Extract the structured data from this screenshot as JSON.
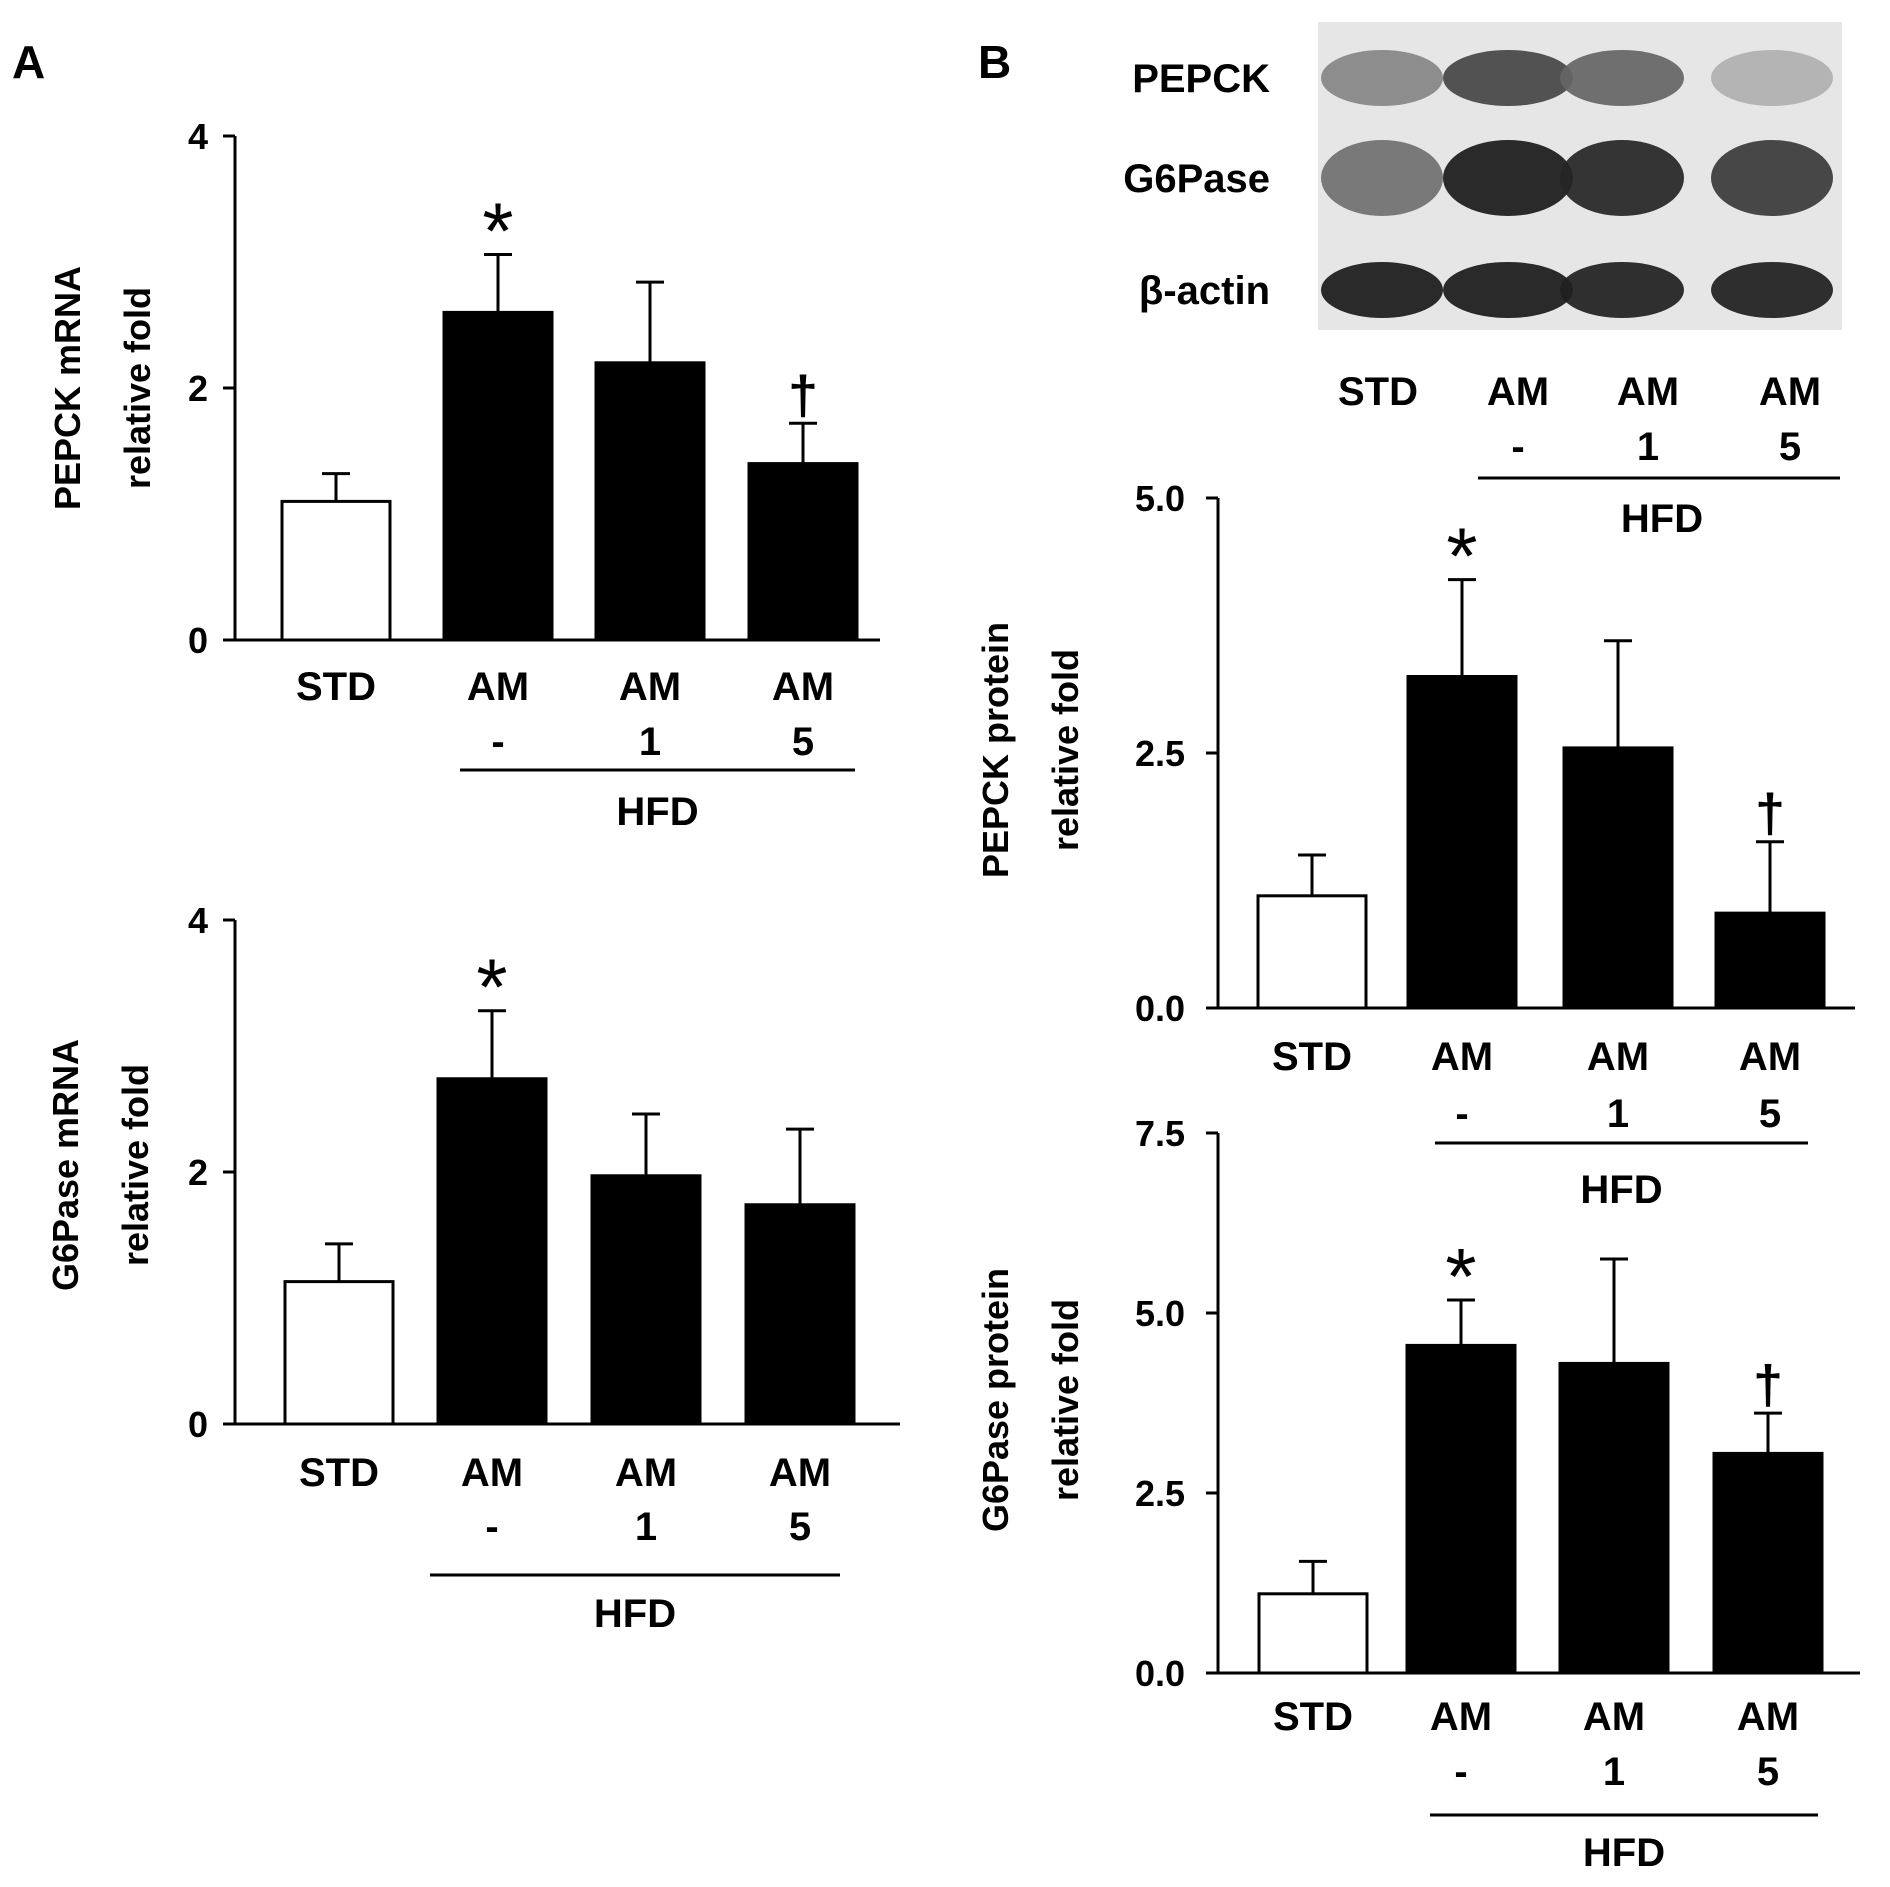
{
  "panel_labels": [
    "A",
    "B"
  ],
  "blot": {
    "rows": [
      "PEPCK",
      "G6Pase",
      "β-actin"
    ],
    "lanes": [
      "STD",
      "AM",
      "AM",
      "AM"
    ],
    "doses": [
      "",
      "-",
      "1",
      "5"
    ],
    "group_label": "HFD",
    "intensity": [
      [
        0.45,
        0.75,
        0.6,
        0.25
      ],
      [
        0.55,
        0.95,
        0.9,
        0.8
      ],
      [
        0.95,
        0.95,
        0.92,
        0.93
      ]
    ]
  },
  "chart_data": [
    {
      "type": "bar",
      "panel": "A",
      "ylabel": [
        "PEPCK mRNA",
        "relative fold"
      ],
      "categories": [
        "STD",
        "AM",
        "AM",
        "AM"
      ],
      "doses": [
        "",
        "-",
        "1",
        "5"
      ],
      "group_label": "HFD",
      "values": [
        1.1,
        2.6,
        2.2,
        1.4
      ],
      "errors": [
        0.22,
        0.46,
        0.64,
        0.32
      ],
      "fills": [
        "#ffffff",
        "#000000",
        "#000000",
        "#000000"
      ],
      "marks": [
        "",
        "*",
        "",
        "†"
      ],
      "ylim": [
        0,
        4
      ],
      "yticks": [
        "0",
        "2",
        "4"
      ]
    },
    {
      "type": "bar",
      "panel": "A",
      "ylabel": [
        "G6Pase mRNA",
        "relative fold"
      ],
      "categories": [
        "STD",
        "AM",
        "AM",
        "AM"
      ],
      "doses": [
        "",
        "-",
        "1",
        "5"
      ],
      "group_label": "HFD",
      "values": [
        1.13,
        2.74,
        1.97,
        1.74
      ],
      "errors": [
        0.3,
        0.54,
        0.49,
        0.6
      ],
      "fills": [
        "#ffffff",
        "#000000",
        "#000000",
        "#000000"
      ],
      "marks": [
        "",
        "*",
        "",
        ""
      ],
      "ylim": [
        0,
        4
      ],
      "yticks": [
        "0",
        "2",
        "4"
      ]
    },
    {
      "type": "bar",
      "panel": "B",
      "ylabel": [
        "PEPCK protein",
        "relative fold"
      ],
      "categories": [
        "STD",
        "AM",
        "AM",
        "AM"
      ],
      "doses": [
        "",
        "-",
        "1",
        "5"
      ],
      "group_label": "HFD",
      "values": [
        1.1,
        3.25,
        2.55,
        0.93
      ],
      "errors": [
        0.4,
        0.95,
        1.05,
        0.7
      ],
      "fills": [
        "#ffffff",
        "#000000",
        "#000000",
        "#000000"
      ],
      "marks": [
        "",
        "*",
        "",
        "†"
      ],
      "ylim": [
        0,
        5
      ],
      "yticks": [
        "0.0",
        "2.5",
        "5.0"
      ]
    },
    {
      "type": "bar",
      "panel": "B",
      "ylabel": [
        "G6Pase protein",
        "relative fold"
      ],
      "categories": [
        "STD",
        "AM",
        "AM",
        "AM"
      ],
      "doses": [
        "",
        "-",
        "1",
        "5"
      ],
      "group_label": "HFD",
      "values": [
        1.1,
        4.55,
        4.3,
        3.05
      ],
      "errors": [
        0.45,
        0.63,
        1.45,
        0.56
      ],
      "fills": [
        "#ffffff",
        "#000000",
        "#000000",
        "#000000"
      ],
      "marks": [
        "",
        "*",
        "",
        "†"
      ],
      "ylim": [
        0,
        7.5
      ],
      "yticks": [
        "0.0",
        "2.5",
        "5.0",
        "7.5"
      ]
    }
  ]
}
